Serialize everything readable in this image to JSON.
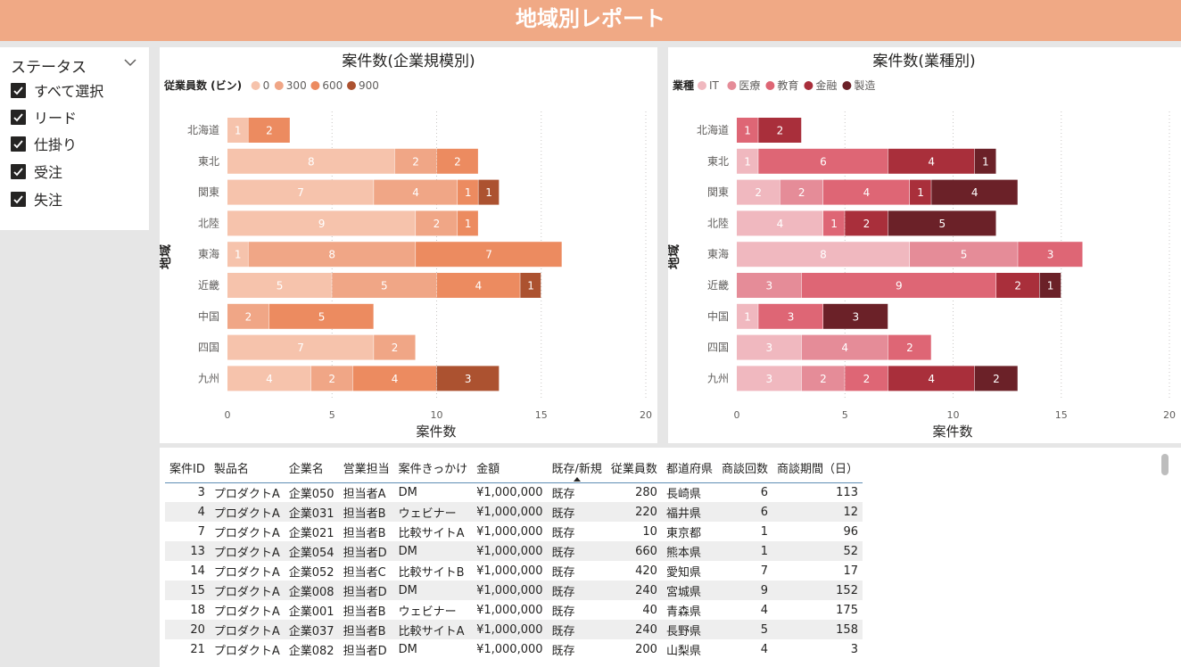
{
  "header": {
    "title": "地域別レポート"
  },
  "slicer": {
    "title": "ステータス",
    "items": [
      {
        "label": "すべて選択",
        "checked": true
      },
      {
        "label": "リード",
        "checked": true
      },
      {
        "label": "仕掛り",
        "checked": true
      },
      {
        "label": "受注",
        "checked": true
      },
      {
        "label": "失注",
        "checked": true
      }
    ]
  },
  "chart_data": [
    {
      "type": "bar",
      "orientation": "horizontal",
      "stacked": true,
      "title": "案件数(企業規模別)",
      "legend_title": "従業員数 (ビン)",
      "legend_position": "top-left",
      "xlabel": "案件数",
      "ylabel": "地域",
      "xlim": [
        0,
        20
      ],
      "xticks": [
        0,
        5,
        10,
        15,
        20
      ],
      "grid": true,
      "categories": [
        "北海道",
        "東北",
        "関東",
        "北陸",
        "東海",
        "近畿",
        "中国",
        "四国",
        "九州"
      ],
      "series": [
        {
          "name": "0",
          "color": "#f6c3ac",
          "values": [
            1,
            8,
            7,
            9,
            1,
            5,
            0,
            7,
            4
          ]
        },
        {
          "name": "300",
          "color": "#f0a686",
          "values": [
            0,
            2,
            4,
            2,
            8,
            5,
            2,
            2,
            2
          ]
        },
        {
          "name": "600",
          "color": "#ec8b60",
          "values": [
            2,
            2,
            1,
            1,
            7,
            4,
            5,
            0,
            4
          ]
        },
        {
          "name": "900",
          "color": "#ac5230",
          "values": [
            0,
            0,
            1,
            0,
            0,
            1,
            0,
            0,
            3
          ]
        }
      ]
    },
    {
      "type": "bar",
      "orientation": "horizontal",
      "stacked": true,
      "title": "案件数(業種別)",
      "legend_title": "業種",
      "legend_position": "top-left",
      "xlabel": "案件数",
      "ylabel": "地域",
      "xlim": [
        0,
        20
      ],
      "xticks": [
        0,
        5,
        10,
        15,
        20
      ],
      "grid": true,
      "categories": [
        "北海道",
        "東北",
        "関東",
        "北陸",
        "東海",
        "近畿",
        "中国",
        "四国",
        "九州"
      ],
      "series": [
        {
          "name": "IT",
          "color": "#f0b8bf",
          "values": [
            0,
            1,
            2,
            4,
            8,
            0,
            1,
            3,
            3
          ]
        },
        {
          "name": "医療",
          "color": "#e58c98",
          "values": [
            0,
            0,
            2,
            0,
            5,
            3,
            0,
            4,
            2
          ]
        },
        {
          "name": "教育",
          "color": "#de6675",
          "values": [
            1,
            6,
            4,
            1,
            3,
            9,
            3,
            2,
            2
          ]
        },
        {
          "name": "金融",
          "color": "#a92f3b",
          "values": [
            2,
            4,
            1,
            2,
            0,
            2,
            0,
            0,
            4
          ]
        },
        {
          "name": "製造",
          "color": "#6b2128",
          "values": [
            0,
            1,
            4,
            5,
            0,
            1,
            3,
            0,
            2
          ]
        }
      ]
    }
  ],
  "table": {
    "columns": [
      "案件ID",
      "製品名",
      "企業名",
      "営業担当",
      "案件きっかけ",
      "金額",
      "既存/新規",
      "従業員数",
      "都道府県",
      "商談回数",
      "商談期間（日）"
    ],
    "rows": [
      [
        "3",
        "プロダクトA",
        "企業050",
        "担当者A",
        "DM",
        "¥1,000,000",
        "既存",
        "280",
        "長崎県",
        "6",
        "113"
      ],
      [
        "4",
        "プロダクトA",
        "企業031",
        "担当者B",
        "ウェビナー",
        "¥1,000,000",
        "既存",
        "220",
        "福井県",
        "6",
        "12"
      ],
      [
        "7",
        "プロダクトA",
        "企業021",
        "担当者B",
        "比較サイトA",
        "¥1,000,000",
        "既存",
        "10",
        "東京都",
        "1",
        "96"
      ],
      [
        "13",
        "プロダクトA",
        "企業054",
        "担当者D",
        "DM",
        "¥1,000,000",
        "既存",
        "660",
        "熊本県",
        "1",
        "52"
      ],
      [
        "14",
        "プロダクトA",
        "企業052",
        "担当者C",
        "比較サイトB",
        "¥1,000,000",
        "既存",
        "420",
        "愛知県",
        "7",
        "17"
      ],
      [
        "15",
        "プロダクトA",
        "企業008",
        "担当者D",
        "DM",
        "¥1,000,000",
        "既存",
        "240",
        "宮城県",
        "9",
        "152"
      ],
      [
        "18",
        "プロダクトA",
        "企業001",
        "担当者B",
        "ウェビナー",
        "¥1,000,000",
        "既存",
        "40",
        "青森県",
        "4",
        "175"
      ],
      [
        "20",
        "プロダクトA",
        "企業037",
        "担当者B",
        "比較サイトA",
        "¥1,000,000",
        "既存",
        "240",
        "長野県",
        "5",
        "158"
      ],
      [
        "21",
        "プロダクトA",
        "企業082",
        "担当者D",
        "DM",
        "¥1,000,000",
        "既存",
        "200",
        "山梨県",
        "4",
        "3"
      ]
    ]
  }
}
